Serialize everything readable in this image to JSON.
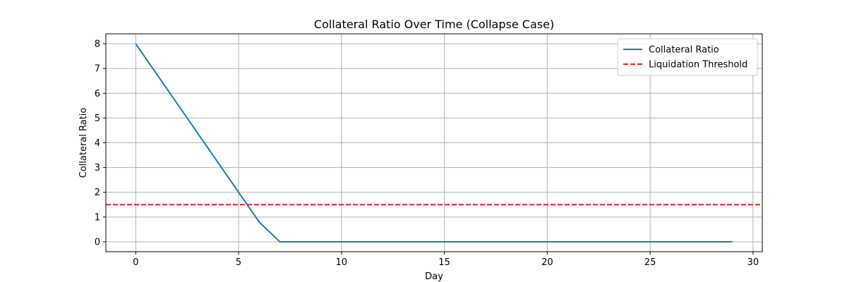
{
  "chart_data": {
    "type": "line",
    "title": "Collateral Ratio Over Time (Collapse Case)",
    "xlabel": "Day",
    "ylabel": "Collateral Ratio",
    "xlim": [
      -1.45,
      30.45
    ],
    "ylim": [
      -0.4,
      8.4
    ],
    "xticks": [
      0,
      5,
      10,
      15,
      20,
      25,
      30
    ],
    "yticks": [
      0,
      1,
      2,
      3,
      4,
      5,
      6,
      7,
      8
    ],
    "grid": true,
    "legend_position": "top-right",
    "series": [
      {
        "name": "Collateral Ratio",
        "style": "solid",
        "color": "#1f77b4",
        "x": [
          0,
          1,
          2,
          3,
          4,
          5,
          6,
          7,
          8,
          9,
          10,
          11,
          12,
          13,
          14,
          15,
          16,
          17,
          18,
          19,
          20,
          21,
          22,
          23,
          24,
          25,
          26,
          27,
          28,
          29
        ],
        "values": [
          8.0,
          6.8,
          5.6,
          4.4,
          3.2,
          2.0,
          0.8,
          0,
          0,
          0,
          0,
          0,
          0,
          0,
          0,
          0,
          0,
          0,
          0,
          0,
          0,
          0,
          0,
          0,
          0,
          0,
          0,
          0,
          0,
          0
        ]
      }
    ],
    "reference_lines": [
      {
        "name": "Liquidation Threshold",
        "orientation": "horizontal",
        "value": 1.5,
        "style": "dashed",
        "color": "#d62728"
      }
    ]
  },
  "colors": {
    "grid": "#b0b0b0",
    "axes": "#000000",
    "background": "#ffffff"
  }
}
